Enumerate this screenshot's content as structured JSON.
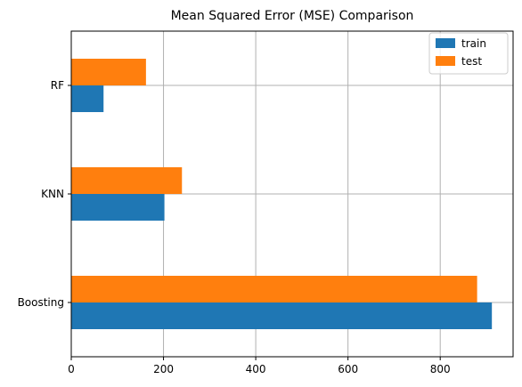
{
  "chart_data": {
    "type": "bar",
    "orientation": "horizontal",
    "title": "Mean Squared Error (MSE) Comparison",
    "xlabel": "",
    "ylabel": "",
    "categories": [
      "Boosting",
      "KNN",
      "RF"
    ],
    "series": [
      {
        "name": "train",
        "color": "#1f77b4",
        "values": [
          912,
          202,
          70
        ]
      },
      {
        "name": "test",
        "color": "#ff7f0e",
        "values": [
          880,
          240,
          162
        ]
      }
    ],
    "xlim": [
      0,
      958
    ],
    "xticks": [
      0,
      200,
      400,
      600,
      800
    ],
    "grid": true,
    "legend_position": "top-right"
  }
}
